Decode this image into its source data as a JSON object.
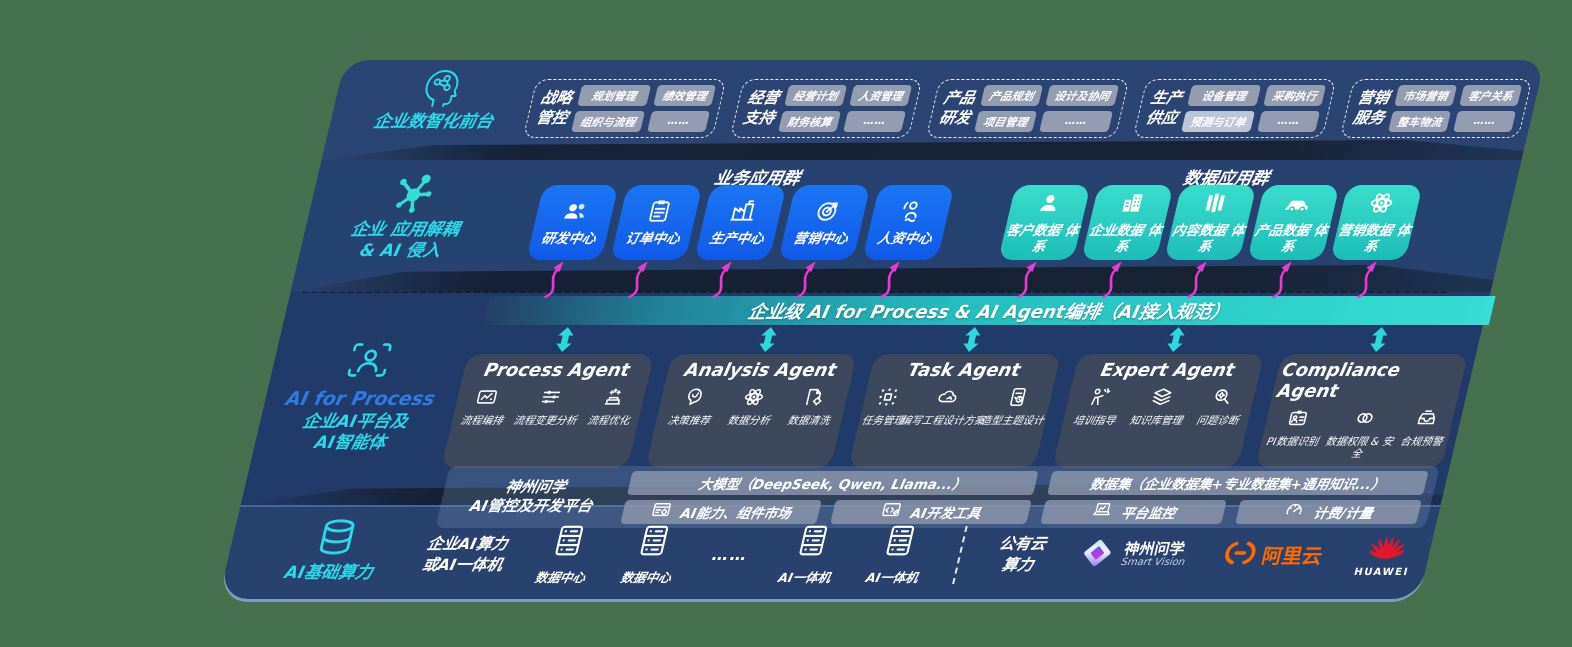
{
  "palette": {
    "page_bg": "#47714E",
    "band_navy": "#264270",
    "accent_cyan": "#2BD9E9",
    "box_blue": "#1668F2",
    "box_teal": "#2FD0C4",
    "bar_teal": "#2ED3CD",
    "arrow_pink": "#E83BD2",
    "chip_gray": "#939CB0",
    "ali_orange": "#FF6A00",
    "huawei_red": "#E2172D"
  },
  "front_layer": {
    "label": "企业数智化前台",
    "icon": "brain-circuit-icon",
    "groups": [
      {
        "label_lines": "战略\n管控",
        "items": [
          {
            "t": "规划管理"
          },
          {
            "t": "绩效管理"
          },
          {
            "t": "组织与流程"
          },
          {
            "t": "……"
          }
        ]
      },
      {
        "label_lines": "经营\n支持",
        "items": [
          {
            "t": "经营计划"
          },
          {
            "t": "人资管理"
          },
          {
            "t": "财务核算"
          },
          {
            "t": "……"
          }
        ]
      },
      {
        "label_lines": "产品\n研发",
        "items": [
          {
            "t": "产品规划"
          },
          {
            "t": "设计及协同"
          },
          {
            "t": "项目管理"
          },
          {
            "t": "……"
          }
        ]
      },
      {
        "label_lines": "生产\n供应",
        "items": [
          {
            "t": "设备管理"
          },
          {
            "t": "采购执行"
          },
          {
            "t": "预测与订单",
            "light": true
          },
          {
            "t": "……"
          }
        ]
      },
      {
        "label_lines": "营销\n服务",
        "items": [
          {
            "t": "市场营销"
          },
          {
            "t": "客户关系"
          },
          {
            "t": "整车物流"
          },
          {
            "t": "……"
          }
        ]
      }
    ]
  },
  "app_layer": {
    "label_line1": "企业 应用解耦",
    "label_line2": "& AI 侵入",
    "icon": "molecule-icon",
    "business_group": {
      "title": "业务应用群",
      "boxes": [
        {
          "label": "研发中心",
          "icon": "team-icon"
        },
        {
          "label": "订单中心",
          "icon": "clipboard-icon"
        },
        {
          "label": "生产中心",
          "icon": "factory-icon"
        },
        {
          "label": "营销中心",
          "icon": "target-icon"
        },
        {
          "label": "人资中心",
          "icon": "person-wave-icon"
        }
      ]
    },
    "data_group": {
      "title": "数据应用群",
      "boxes": [
        {
          "label": "客户数据\n体系",
          "icon": "user-icon"
        },
        {
          "label": "企业数据\n体系",
          "icon": "building-icon"
        },
        {
          "label": "内容数据\n体系",
          "icon": "books-icon"
        },
        {
          "label": "产品数据\n体系",
          "icon": "car-icon"
        },
        {
          "label": "营销数据\n体系",
          "icon": "atom-icon"
        }
      ]
    }
  },
  "orchestration_bar": {
    "label": "企业级 AI for Process & AI Agent编排（AI接入规范）"
  },
  "ai_layer": {
    "label_title": "AI for Process",
    "label_line1": "企业AI平台及",
    "label_line2": "AI智能体",
    "icon": "person-scan-icon",
    "agents": [
      {
        "title": "Process Agent",
        "items": [
          {
            "label": "流程编排",
            "icon": "workflow-icon"
          },
          {
            "label": "流程变更分析",
            "icon": "sliders-icon"
          },
          {
            "label": "流程优化",
            "icon": "optimize-icon"
          }
        ]
      },
      {
        "title": "Analysis Agent",
        "items": [
          {
            "label": "决策推荐",
            "icon": "brain-chat-icon"
          },
          {
            "label": "数据分析",
            "icon": "atom-icon"
          },
          {
            "label": "数据清洗",
            "icon": "doc-gear-icon"
          }
        ]
      },
      {
        "title": "Task Agent",
        "items": [
          {
            "label": "任务管理",
            "icon": "robot-grid-icon"
          },
          {
            "label": "编写工程设计方案",
            "icon": "cloud-edit-icon"
          },
          {
            "label": "造型主题设计",
            "icon": "design-doc-icon"
          }
        ]
      },
      {
        "title": "Expert Agent",
        "items": [
          {
            "label": "培训指导",
            "icon": "training-icon"
          },
          {
            "label": "知识库管理",
            "icon": "layers-icon"
          },
          {
            "label": "问题诊断",
            "icon": "diagnosis-icon"
          }
        ]
      },
      {
        "title": "Compliance Agent",
        "items": [
          {
            "label": "PI数据识别",
            "icon": "id-card-icon"
          },
          {
            "label": "数据权限 & 安全",
            "icon": "rings-icon",
            "wrap": true
          },
          {
            "label": "合规预警",
            "icon": "alert-mail-icon"
          }
        ]
      }
    ]
  },
  "platform": {
    "label_line1": "神州问学",
    "label_line2": "AI管控及开发平台",
    "left_bar": "大模型（DeepSeek, Qwen, Llama...）",
    "left_cells": [
      {
        "label": "AI能力、组件市场",
        "icon": "components-icon"
      },
      {
        "label": "AI开发工具",
        "icon": "devtools-icon"
      }
    ],
    "right_bar": "数据集（企业数据集+专业数据集+通用知识...）",
    "right_cells": [
      {
        "label": "平台监控",
        "icon": "monitor-icon"
      },
      {
        "label": "计费/计量",
        "icon": "gauge-icon"
      }
    ]
  },
  "infra_layer": {
    "label": "AI基础算力",
    "icon": "database-icon",
    "compute_line1": "企业AI算力",
    "compute_line2": "或AI一体机",
    "nodes": [
      {
        "label": "数据中心",
        "icon": "server-icon"
      },
      {
        "label": "数据中心",
        "icon": "server-icon"
      },
      {
        "label": "AI一体机",
        "icon": "server-icon"
      },
      {
        "label": "AI一体机",
        "icon": "server-icon"
      }
    ],
    "dots": "…… ",
    "cloud_line1": "公有云",
    "cloud_line2": "算力",
    "logos": {
      "smartvision": {
        "name": "神州问学",
        "sub": "Smart Vision"
      },
      "alicloud": {
        "name": "阿里云"
      },
      "huawei": {
        "name": "HUAWEI"
      }
    }
  }
}
